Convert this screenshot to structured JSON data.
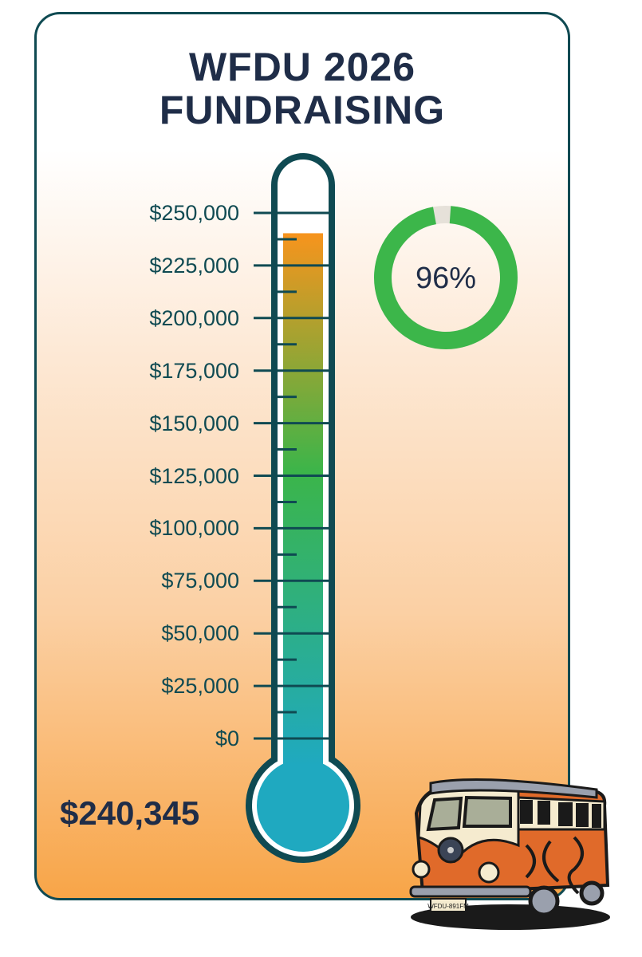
{
  "title_line1": "WFDU 2026",
  "title_line2": "FUNDRAISING",
  "raised_label": "$240,345",
  "percent_label": "96%",
  "van_plate": "WFDU-891FM",
  "colors": {
    "border": "#0f4a52",
    "title": "#1f2d48",
    "fill_top": "#f7941d",
    "fill_mid": "#3bb54a",
    "fill_bottom": "#1fa9c0",
    "donut": "#3cb64a",
    "donut_rest": "#e6e1d9"
  },
  "chart_data": {
    "type": "thermometer",
    "value": 240345,
    "goal": 250000,
    "percent": 96,
    "ylim": [
      0,
      250000
    ],
    "tick_labels": [
      "$0",
      "$25,000",
      "$50,000",
      "$75,000",
      "$100,000",
      "$125,000",
      "$150,000",
      "$175,000",
      "$200,000",
      "$225,000",
      "$250,000"
    ],
    "tick_values": [
      0,
      25000,
      50000,
      75000,
      100000,
      125000,
      150000,
      175000,
      200000,
      225000,
      250000
    ],
    "minor_tick_step": 12500
  }
}
